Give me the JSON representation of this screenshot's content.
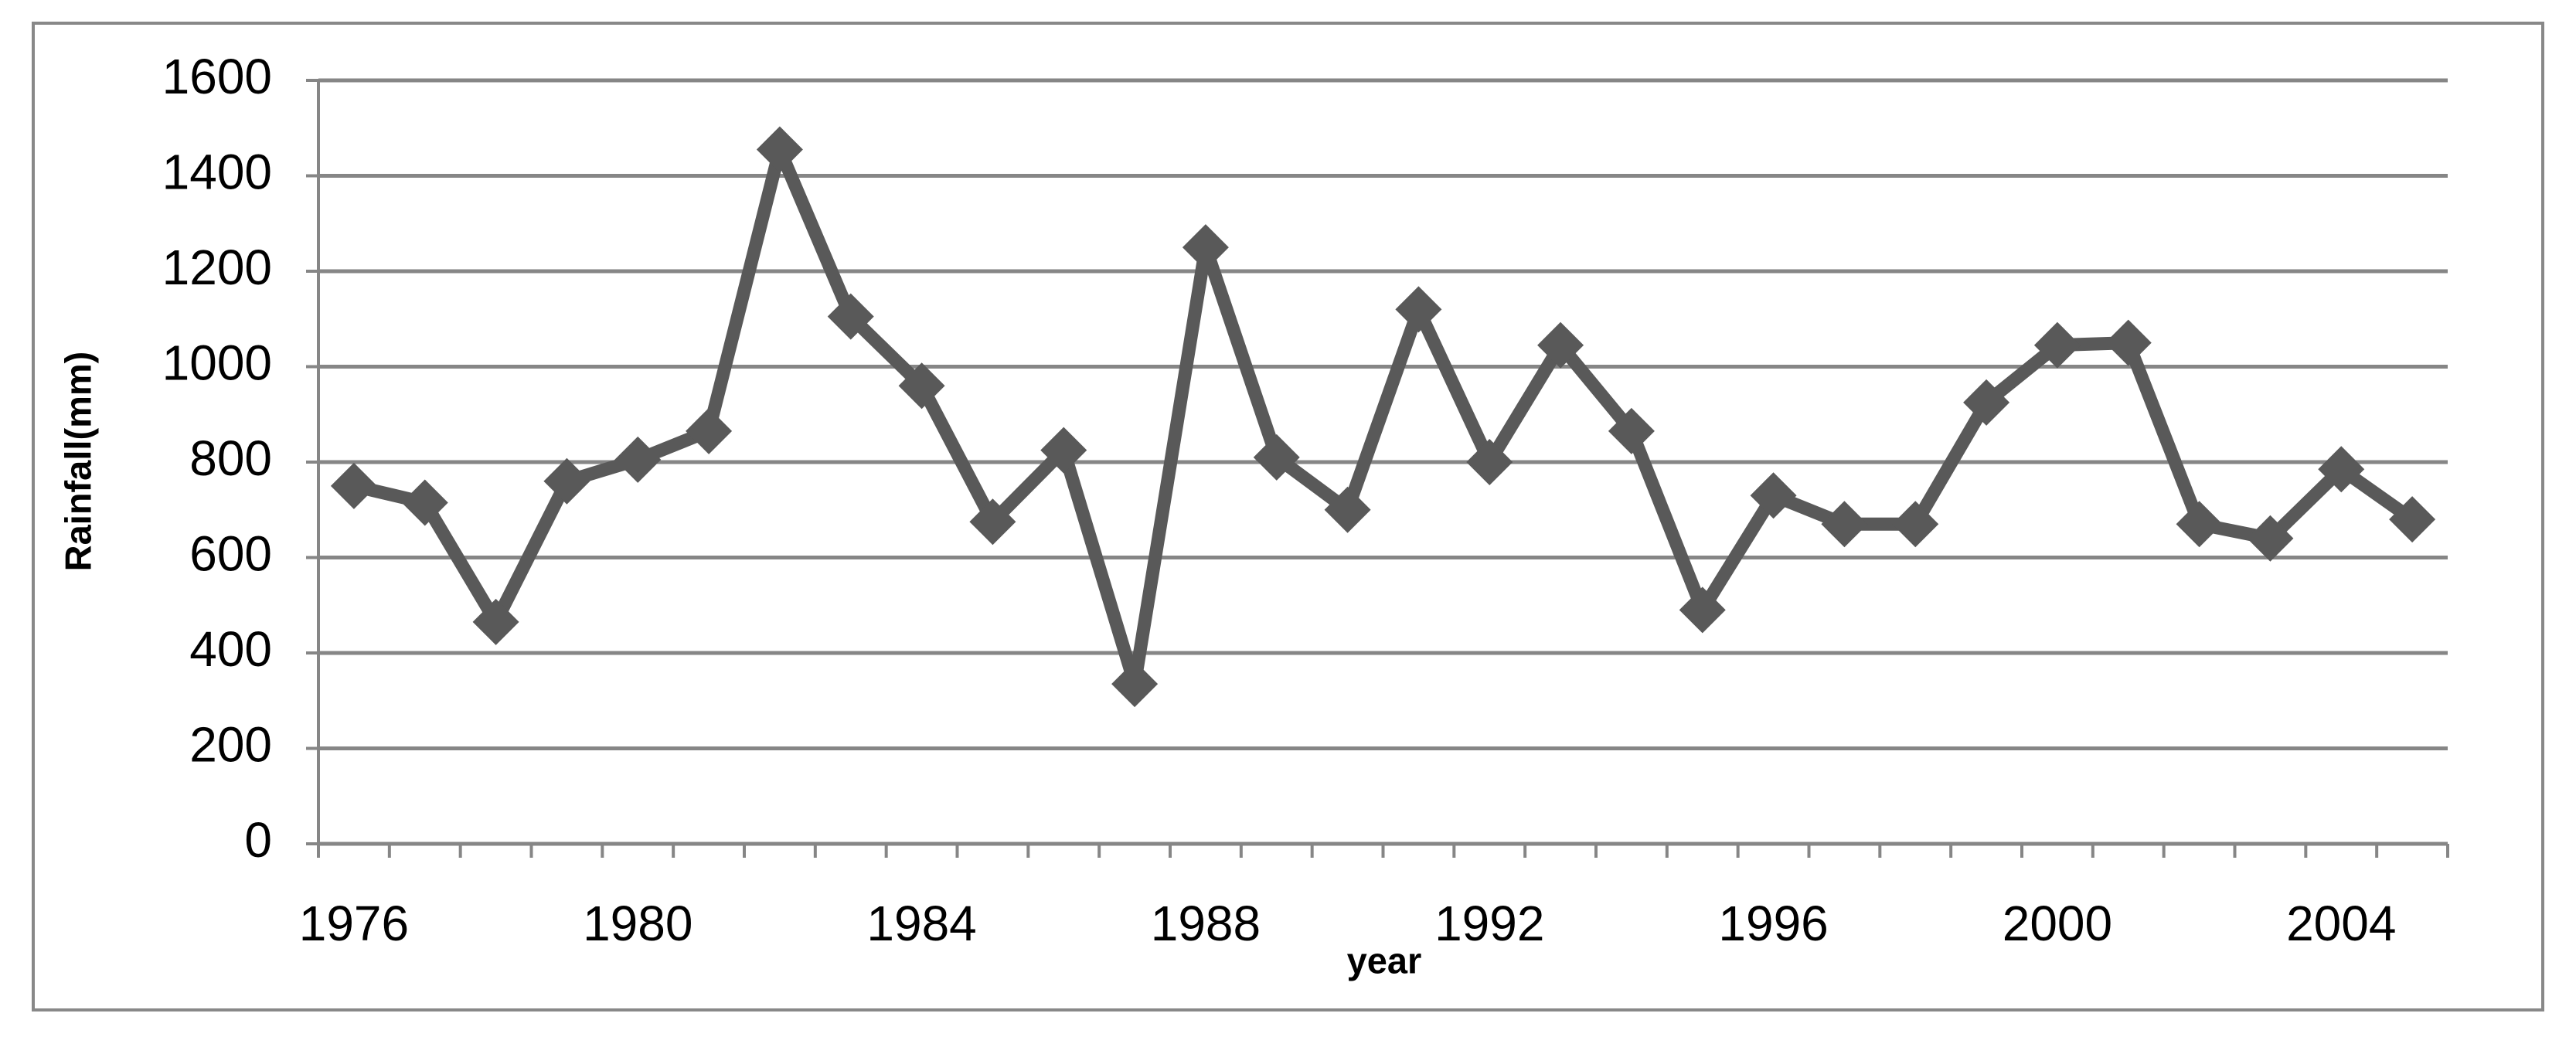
{
  "chart_data": {
    "type": "line",
    "x_label": "year",
    "y_label": "Rainfall(mm)",
    "x": [
      1976,
      1977,
      1978,
      1979,
      1980,
      1981,
      1982,
      1983,
      1984,
      1985,
      1986,
      1987,
      1988,
      1989,
      1990,
      1991,
      1992,
      1993,
      1994,
      1995,
      1996,
      1997,
      1998,
      1999,
      2000,
      2001,
      2002,
      2003,
      2004,
      2005
    ],
    "series": [
      {
        "name": "Rainfall",
        "color": "#595959",
        "values": [
          750,
          715,
          465,
          760,
          805,
          865,
          1455,
          1105,
          960,
          675,
          825,
          335,
          1250,
          810,
          700,
          1120,
          800,
          1045,
          865,
          490,
          730,
          670,
          670,
          925,
          1045,
          1050,
          670,
          640,
          785,
          680
        ]
      }
    ],
    "xlim": [
      1975.5,
      2005.5
    ],
    "xticks": [
      1976,
      1980,
      1984,
      1988,
      1992,
      1996,
      2000,
      2004
    ],
    "ylim": [
      0,
      1600
    ],
    "yticks": [
      0,
      200,
      400,
      600,
      800,
      1000,
      1200,
      1400,
      1600
    ],
    "grid": true
  }
}
